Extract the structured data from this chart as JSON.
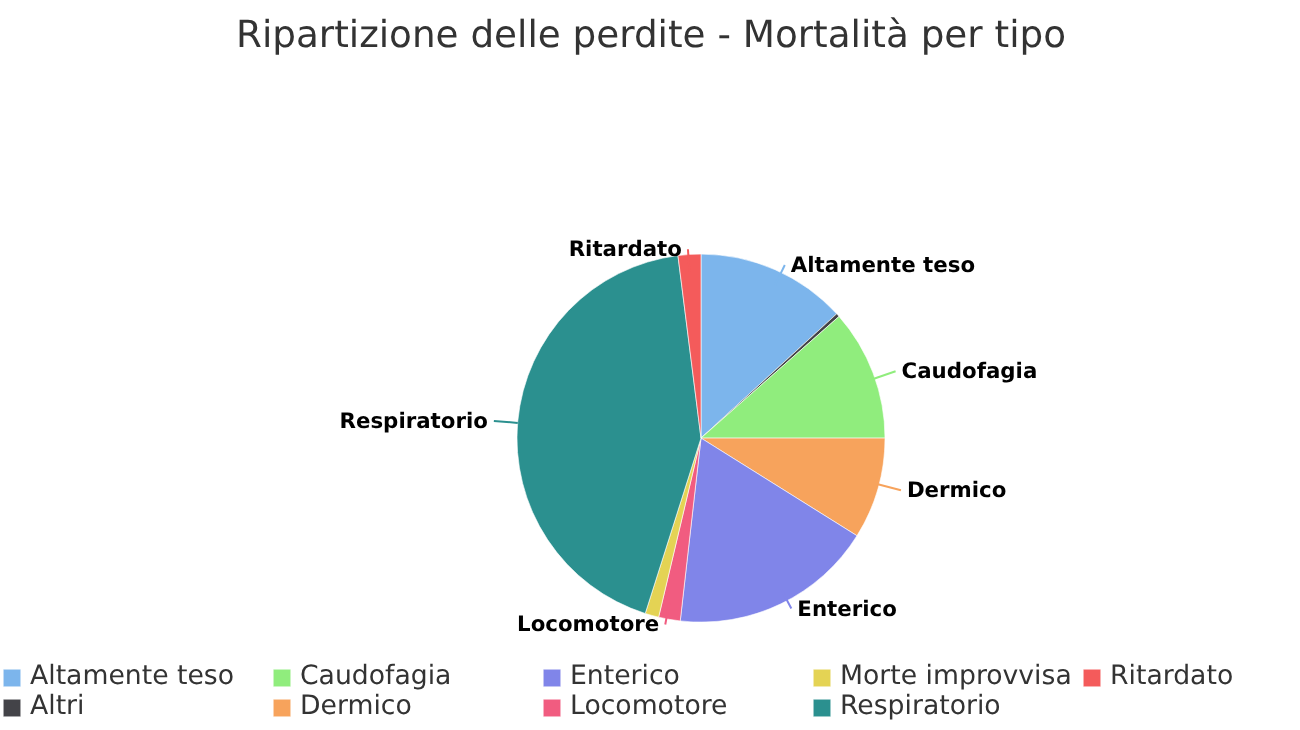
{
  "chart_data": {
    "type": "pie",
    "title": "Ripartizione delle perdite - Mortalità per tipo",
    "categories": [
      "Altamente teso",
      "Altri",
      "Caudofagia",
      "Dermico",
      "Enterico",
      "Locomotore",
      "Morte improvvisa",
      "Respiratorio",
      "Ritardato"
    ],
    "values": [
      13.2,
      0.3,
      11.5,
      8.9,
      17.9,
      1.9,
      1.2,
      43.1,
      2.0
    ],
    "colors": [
      "#7cb5ec",
      "#434348",
      "#90ed7d",
      "#f7a35c",
      "#8085e9",
      "#f15c80",
      "#e4d354",
      "#2b908f",
      "#f45b5b"
    ],
    "legend": "bottom"
  }
}
